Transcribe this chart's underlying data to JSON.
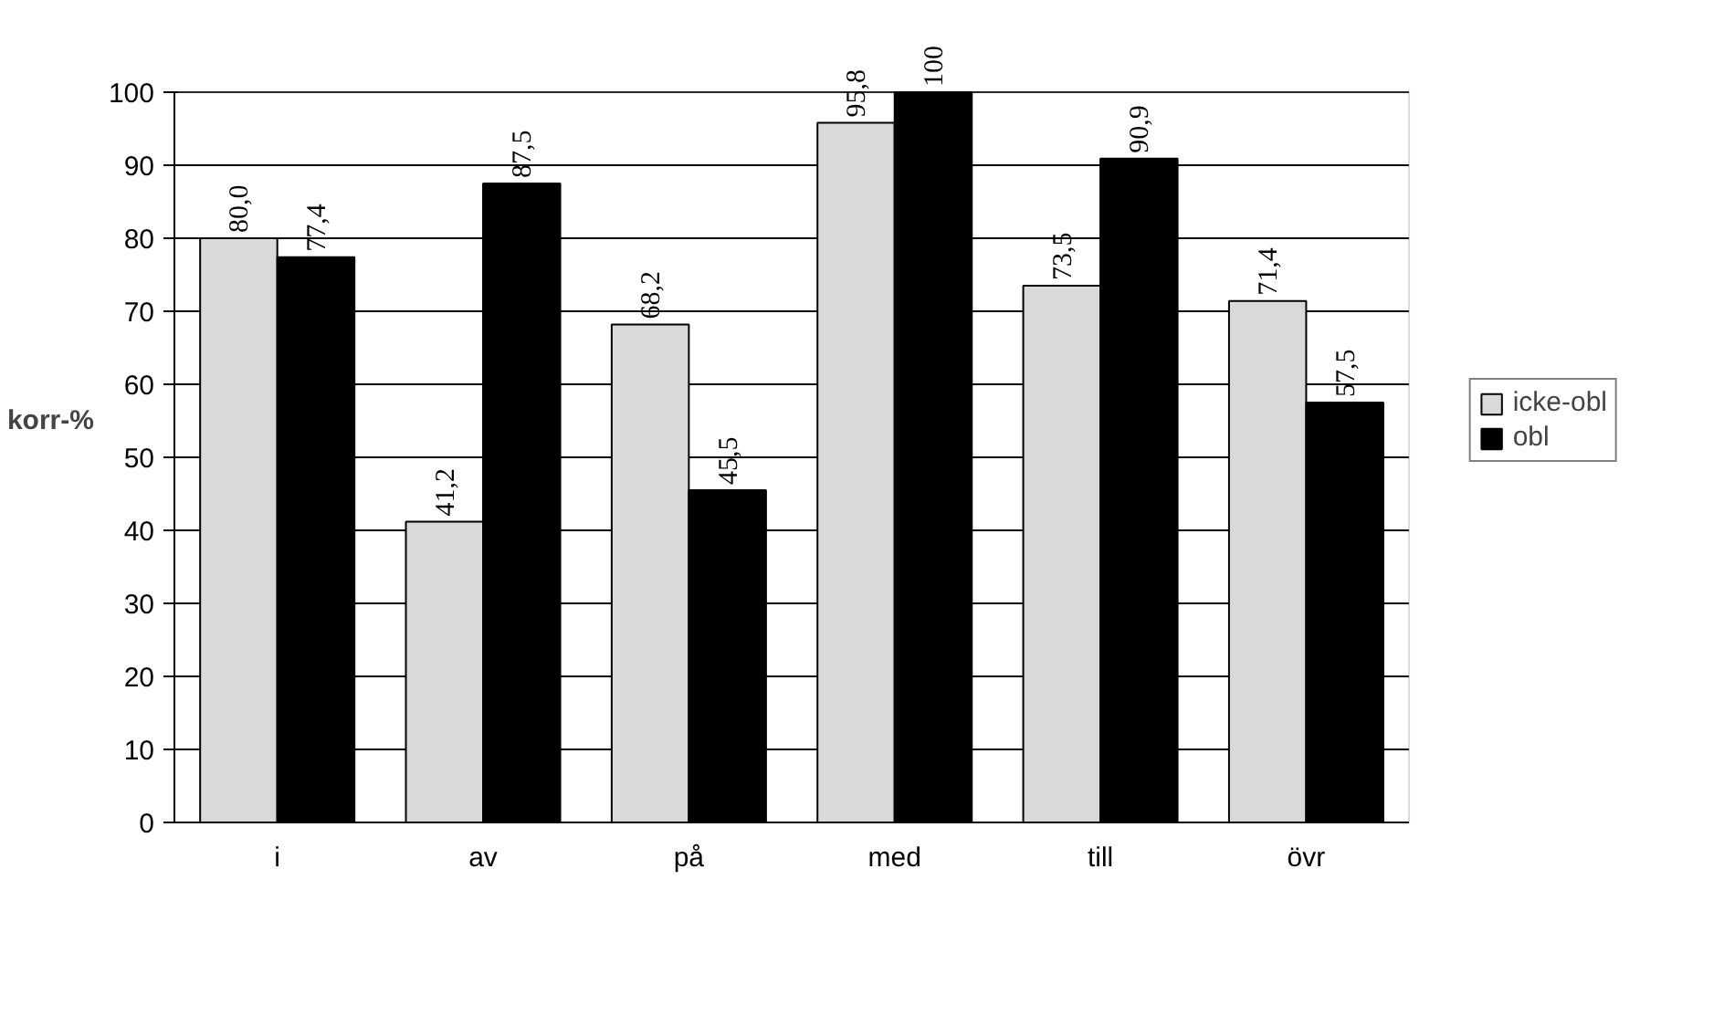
{
  "chart_data": {
    "type": "bar",
    "ylabel": "korr-%",
    "categories": [
      "i",
      "av",
      "på",
      "med",
      "till",
      "övr"
    ],
    "series": [
      {
        "name": "icke-obl",
        "color": "#d9d9d9",
        "values": [
          80.0,
          41.2,
          68.2,
          95.8,
          73.5,
          71.4
        ],
        "value_labels": [
          "80,0",
          "41,2",
          "68,2",
          "95,8",
          "73,5",
          "71,4"
        ]
      },
      {
        "name": "obl",
        "color": "#000000",
        "values": [
          77.4,
          87.5,
          45.5,
          100,
          90.9,
          57.5
        ],
        "value_labels": [
          "77,4",
          "87,5",
          "45,5",
          "100",
          "90,9",
          "57,5"
        ]
      }
    ],
    "ylim": [
      0,
      100
    ],
    "yticks": [
      0,
      10,
      20,
      30,
      40,
      50,
      60,
      70,
      80,
      90,
      100
    ],
    "grid": "y",
    "legend": "right"
  }
}
